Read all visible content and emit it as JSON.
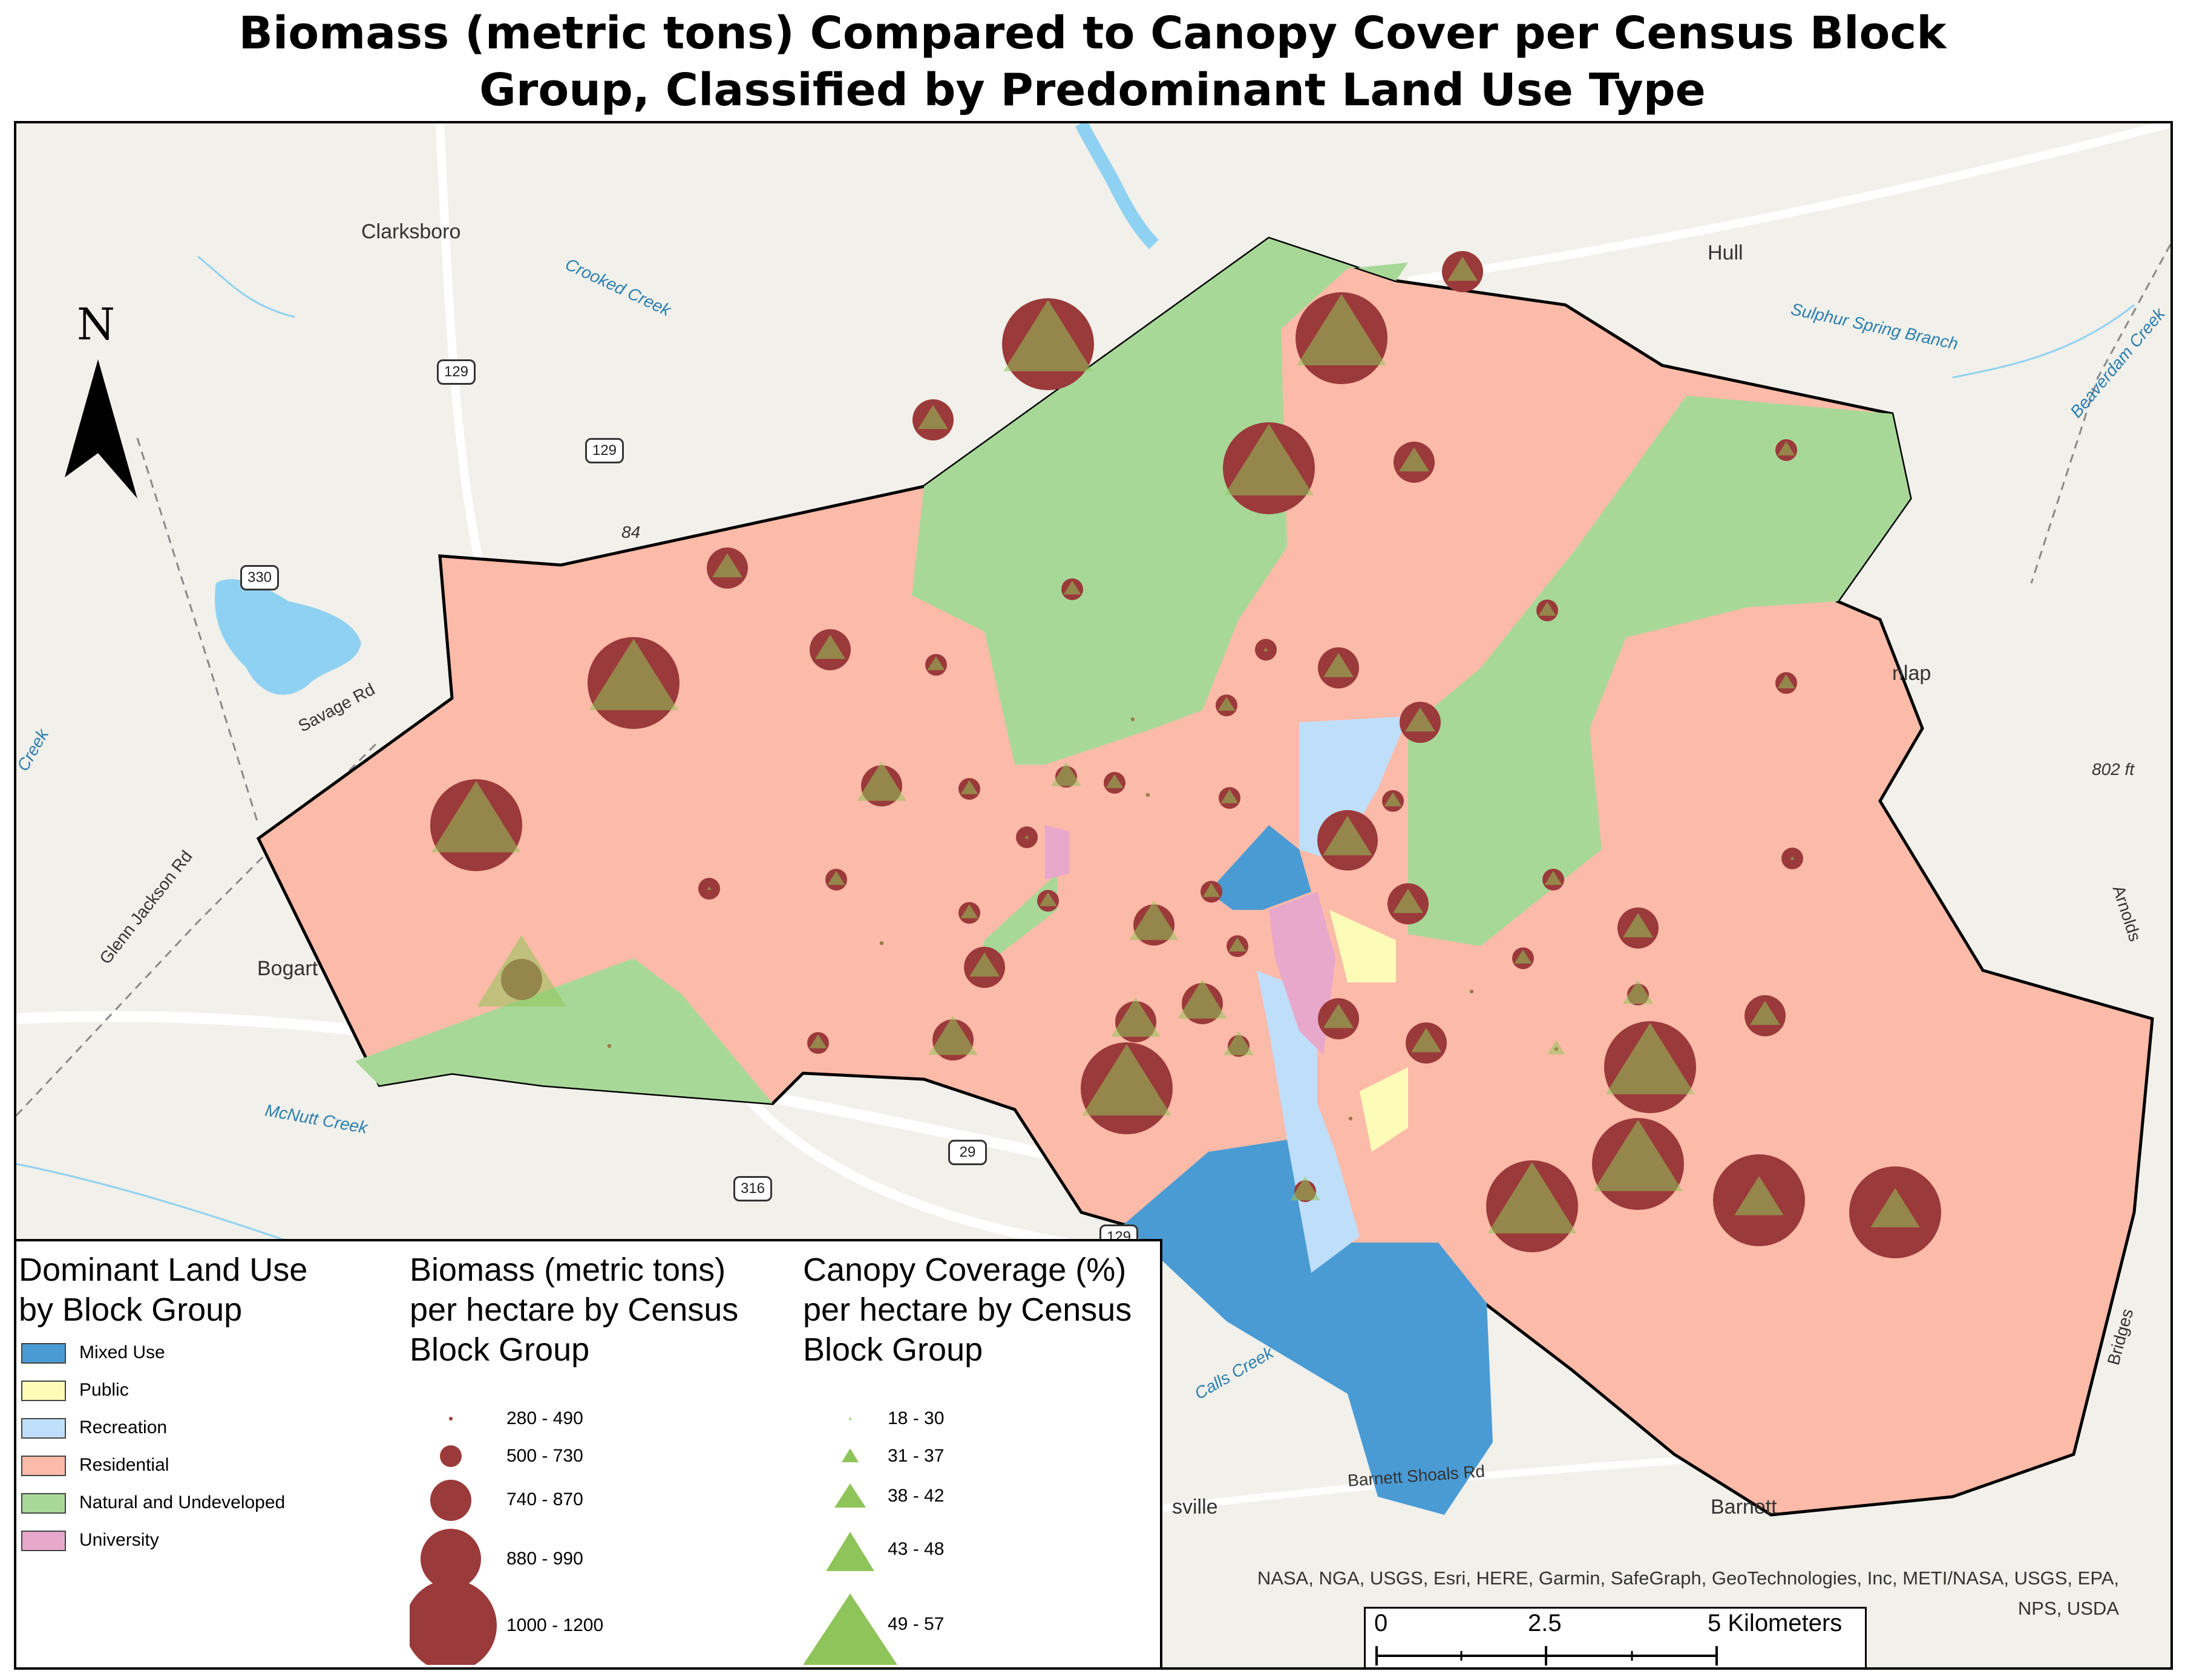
{
  "title": {
    "line1": "Biomass (metric tons) Compared to Canopy Cover per Census Block",
    "line2": "Group, Classified by Predominant Land Use Type"
  },
  "colors": {
    "mixed_use": "#4a9bd4",
    "public": "#fdfbb8",
    "recreation": "#bfdefa",
    "residential": "#fcbaa8",
    "natural": "#a8d898",
    "university": "#e8a8cc",
    "biomass_circle": "#9b3a3a",
    "canopy_triangle": "#8fc45a"
  },
  "map": {
    "north_label": "N",
    "places": [
      "Clarksboro",
      "Hull",
      "Bogart",
      "nlap",
      "sville",
      "Barnett"
    ],
    "roads": [
      "Savage Rd",
      "Glenn Jackson Rd",
      "Barnett Shoals Rd",
      "Arnolds",
      "Bridges"
    ],
    "waterways": [
      "Crooked Creek",
      "Sulphur Spring Branch",
      "Beaverdam Creek",
      "McNutt Creek",
      "Calls Creek",
      "Creek"
    ],
    "shields": [
      "129",
      "129",
      "330",
      "29",
      "316",
      "129"
    ],
    "elevations": [
      "802 ft",
      "84"
    ]
  },
  "legend": {
    "land_use_title": "Dominant Land Use by Block Group",
    "land_use_title_line1": "Dominant Land Use",
    "land_use_title_line2": "by Block Group",
    "land_use": [
      {
        "label": "Mixed Use",
        "color": "#4a9bd4"
      },
      {
        "label": "Public",
        "color": "#fdfbb8"
      },
      {
        "label": "Recreation",
        "color": "#bfdefa"
      },
      {
        "label": "Residential",
        "color": "#fcbaa8"
      },
      {
        "label": "Natural and Undeveloped",
        "color": "#a8d898"
      },
      {
        "label": "University",
        "color": "#e8a8cc"
      }
    ],
    "biomass_title_line1": "Biomass (metric tons)",
    "biomass_title_line2": "per hectare by Census",
    "biomass_title_line3": "Block Group",
    "biomass_classes": [
      "280 - 490",
      "500 - 730",
      "740 - 870",
      "880 - 990",
      "1000 - 1200"
    ],
    "canopy_title_line1": "Canopy Coverage (%)",
    "canopy_title_line2": "per hectare by Census",
    "canopy_title_line3": "Block Group",
    "canopy_classes": [
      "18 - 30",
      "31 - 37",
      "38 - 42",
      "43 - 48",
      "49 - 57"
    ]
  },
  "attribution": {
    "line1": "NASA, NGA, USGS, Esri, HERE, Garmin, SafeGraph, GeoTechnologies, Inc, METI/NASA, USGS, EPA,",
    "line2": "NPS, USDA"
  },
  "scalebar": {
    "label_0": "0",
    "label_mid": "2.5",
    "label_end": "5 Kilometers"
  }
}
